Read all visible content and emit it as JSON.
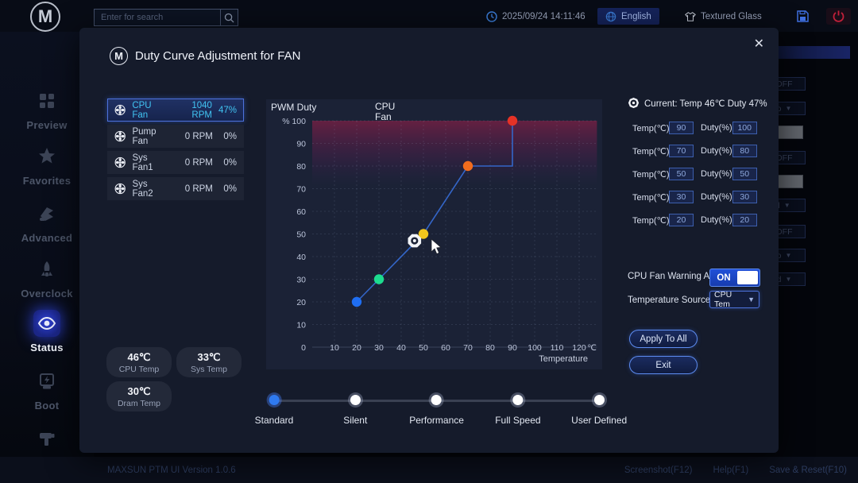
{
  "topbar": {
    "search_placeholder": "Enter for search",
    "datetime": "2025/09/24 14:11:46",
    "language": "English",
    "theme": "Textured Glass"
  },
  "sidebar": {
    "items": [
      {
        "label": "Preview",
        "icon": "grid-icon",
        "active": false
      },
      {
        "label": "Favorites",
        "icon": "star-icon",
        "active": false
      },
      {
        "label": "Advanced",
        "icon": "advanced-icon",
        "active": false
      },
      {
        "label": "Overclock",
        "icon": "rocket-icon",
        "active": false
      },
      {
        "label": "Status",
        "icon": "status-icon",
        "active": true
      },
      {
        "label": "Boot",
        "icon": "boot-icon",
        "active": false
      },
      {
        "label": "Tools",
        "icon": "tools-icon",
        "active": false
      }
    ]
  },
  "modal": {
    "title": "Duty Curve Adjustment for FAN",
    "fans": [
      {
        "name": "CPU Fan",
        "rpm": "1040 RPM",
        "duty": "47%",
        "selected": true
      },
      {
        "name": "Pump Fan",
        "rpm": "0 RPM",
        "duty": "0%",
        "selected": false
      },
      {
        "name": "Sys Fan1",
        "rpm": "0 RPM",
        "duty": "0%",
        "selected": false
      },
      {
        "name": "Sys Fan2",
        "rpm": "0 RPM",
        "duty": "0%",
        "selected": false
      }
    ],
    "temps": [
      {
        "value": "46℃",
        "label": "CPU Temp"
      },
      {
        "value": "33℃",
        "label": "Sys Temp"
      },
      {
        "value": "30℃",
        "label": "Dram Temp"
      }
    ],
    "current_label": "Current: Temp 46℃  Duty 47%",
    "row_temp_label": "Temp(℃)",
    "row_duty_label": "Duty(%)",
    "curve_rows": [
      {
        "color": "#e63226",
        "temp": "90",
        "duty": "100"
      },
      {
        "color": "#f26c1d",
        "temp": "70",
        "duty": "80"
      },
      {
        "color": "#f3c71d",
        "temp": "50",
        "duty": "50"
      },
      {
        "color": "#1ddc8f",
        "temp": "30",
        "duty": "30"
      },
      {
        "color": "#1f6ef2",
        "temp": "20",
        "duty": "20"
      }
    ],
    "warning": {
      "label": "CPU Fan Warning Alert",
      "state": "ON"
    },
    "source": {
      "label": "Temperature Source",
      "value": "CPU Tem"
    },
    "apply_label": "Apply To All",
    "exit_label": "Exit",
    "presets": {
      "options": [
        "Standard",
        "Silent",
        "Performance",
        "Full Speed",
        "User Defined"
      ],
      "active": "Standard"
    }
  },
  "chart_data": {
    "type": "line",
    "title": "CPU Fan",
    "ylabel": "PWM Duty",
    "y_unit": "%",
    "xlabel": "Temperature",
    "x_unit": "℃",
    "xlim": [
      0,
      130
    ],
    "ylim": [
      0,
      105
    ],
    "x_ticks": [
      0,
      10,
      20,
      30,
      40,
      50,
      60,
      70,
      80,
      90,
      100,
      110,
      120
    ],
    "y_ticks": [
      0,
      10,
      20,
      30,
      40,
      50,
      60,
      70,
      80,
      90,
      100
    ],
    "grid": true,
    "points": [
      {
        "temp": 20,
        "duty": 20,
        "color": "#1f6ef2"
      },
      {
        "temp": 30,
        "duty": 30,
        "color": "#1ddc8f"
      },
      {
        "temp": 50,
        "duty": 50,
        "color": "#f3c71d"
      },
      {
        "temp": 70,
        "duty": 80,
        "color": "#f26c1d"
      },
      {
        "temp": 90,
        "duty": 100,
        "color": "#e63226"
      }
    ],
    "line_color": "#3466c8",
    "current": {
      "temp": 46,
      "duty": 47
    },
    "danger_zone": {
      "from_duty": 80,
      "to_duty": 100
    }
  },
  "background": {
    "off_label": "OFF",
    "select_fragments": [
      "o",
      "l",
      "o",
      "d"
    ]
  },
  "footer": {
    "version": "MAXSUN PTM UI Version 1.0.6",
    "screenshot": "Screenshot(F12)",
    "help": "Help(F1)",
    "save": "Save & Reset(F10)"
  }
}
